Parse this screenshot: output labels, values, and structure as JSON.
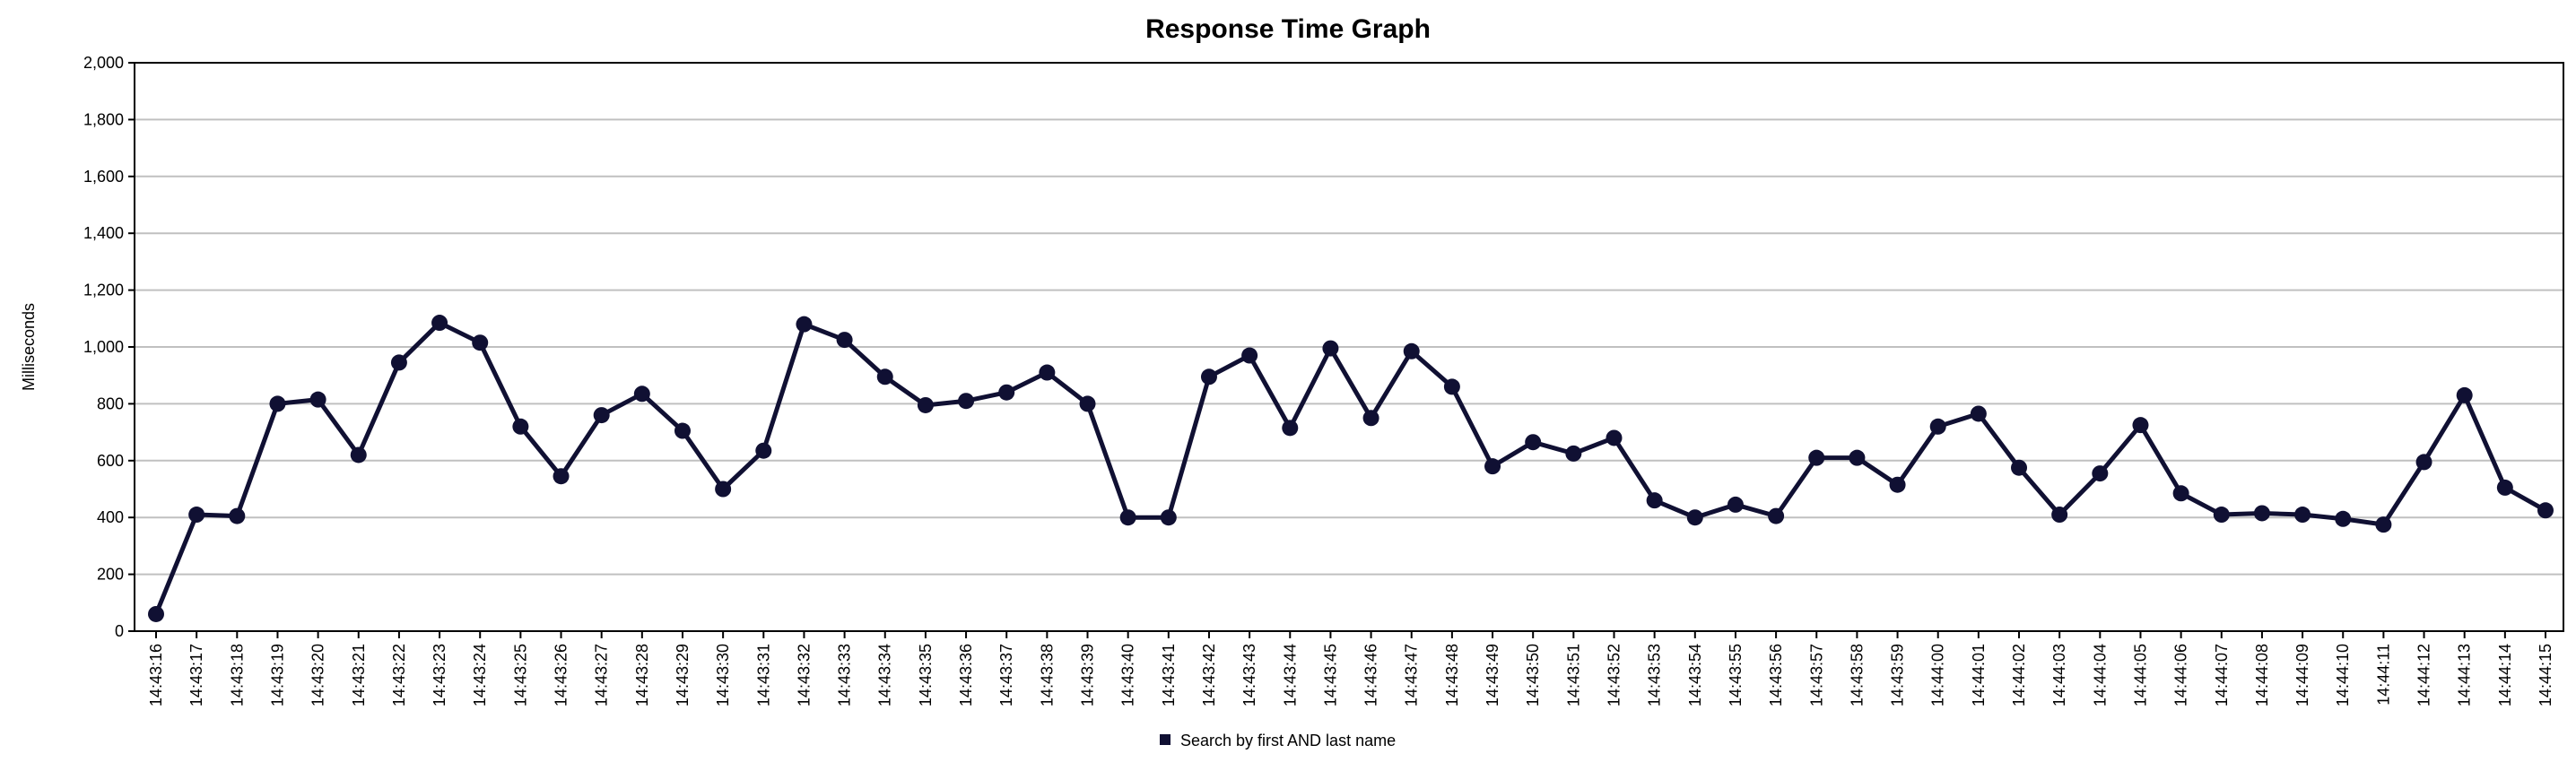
{
  "chart_data": {
    "type": "line",
    "title": "Response Time Graph",
    "xlabel": "",
    "ylabel": "Milliseconds",
    "ylim": [
      0,
      2000
    ],
    "yticks": [
      0,
      200,
      400,
      600,
      800,
      1000,
      1200,
      1400,
      1600,
      1800,
      2000
    ],
    "ytick_labels": [
      "0",
      "200",
      "400",
      "600",
      "800",
      "1,000",
      "1,200",
      "1,400",
      "1,600",
      "1,800",
      "2,000"
    ],
    "grid": true,
    "legend_position": "bottom-center",
    "categories": [
      "14:43:16",
      "14:43:17",
      "14:43:18",
      "14:43:19",
      "14:43:20",
      "14:43:21",
      "14:43:22",
      "14:43:23",
      "14:43:24",
      "14:43:25",
      "14:43:26",
      "14:43:27",
      "14:43:28",
      "14:43:29",
      "14:43:30",
      "14:43:31",
      "14:43:32",
      "14:43:33",
      "14:43:34",
      "14:43:35",
      "14:43:36",
      "14:43:37",
      "14:43:38",
      "14:43:39",
      "14:43:40",
      "14:43:41",
      "14:43:42",
      "14:43:43",
      "14:43:44",
      "14:43:45",
      "14:43:46",
      "14:43:47",
      "14:43:48",
      "14:43:49",
      "14:43:50",
      "14:43:51",
      "14:43:52",
      "14:43:53",
      "14:43:54",
      "14:43:55",
      "14:43:56",
      "14:43:57",
      "14:43:58",
      "14:43:59",
      "14:44:00",
      "14:44:01",
      "14:44:02",
      "14:44:03",
      "14:44:04",
      "14:44:05",
      "14:44:06",
      "14:44:07",
      "14:44:08",
      "14:44:09",
      "14:44:10",
      "14:44:11",
      "14:44:12",
      "14:44:13",
      "14:44:14",
      "14:44:15"
    ],
    "series": [
      {
        "name": "Search by first AND last name",
        "color": "#101033",
        "values": [
          60,
          410,
          405,
          800,
          815,
          620,
          945,
          1085,
          1015,
          720,
          545,
          760,
          835,
          705,
          500,
          635,
          1080,
          1025,
          895,
          795,
          810,
          840,
          910,
          800,
          400,
          400,
          895,
          970,
          715,
          995,
          750,
          985,
          860,
          580,
          665,
          625,
          680,
          460,
          400,
          445,
          405,
          610,
          610,
          515,
          720,
          765,
          575,
          410,
          555,
          725,
          485,
          410,
          415,
          410,
          395,
          375,
          595,
          830,
          505,
          425
        ]
      }
    ]
  }
}
